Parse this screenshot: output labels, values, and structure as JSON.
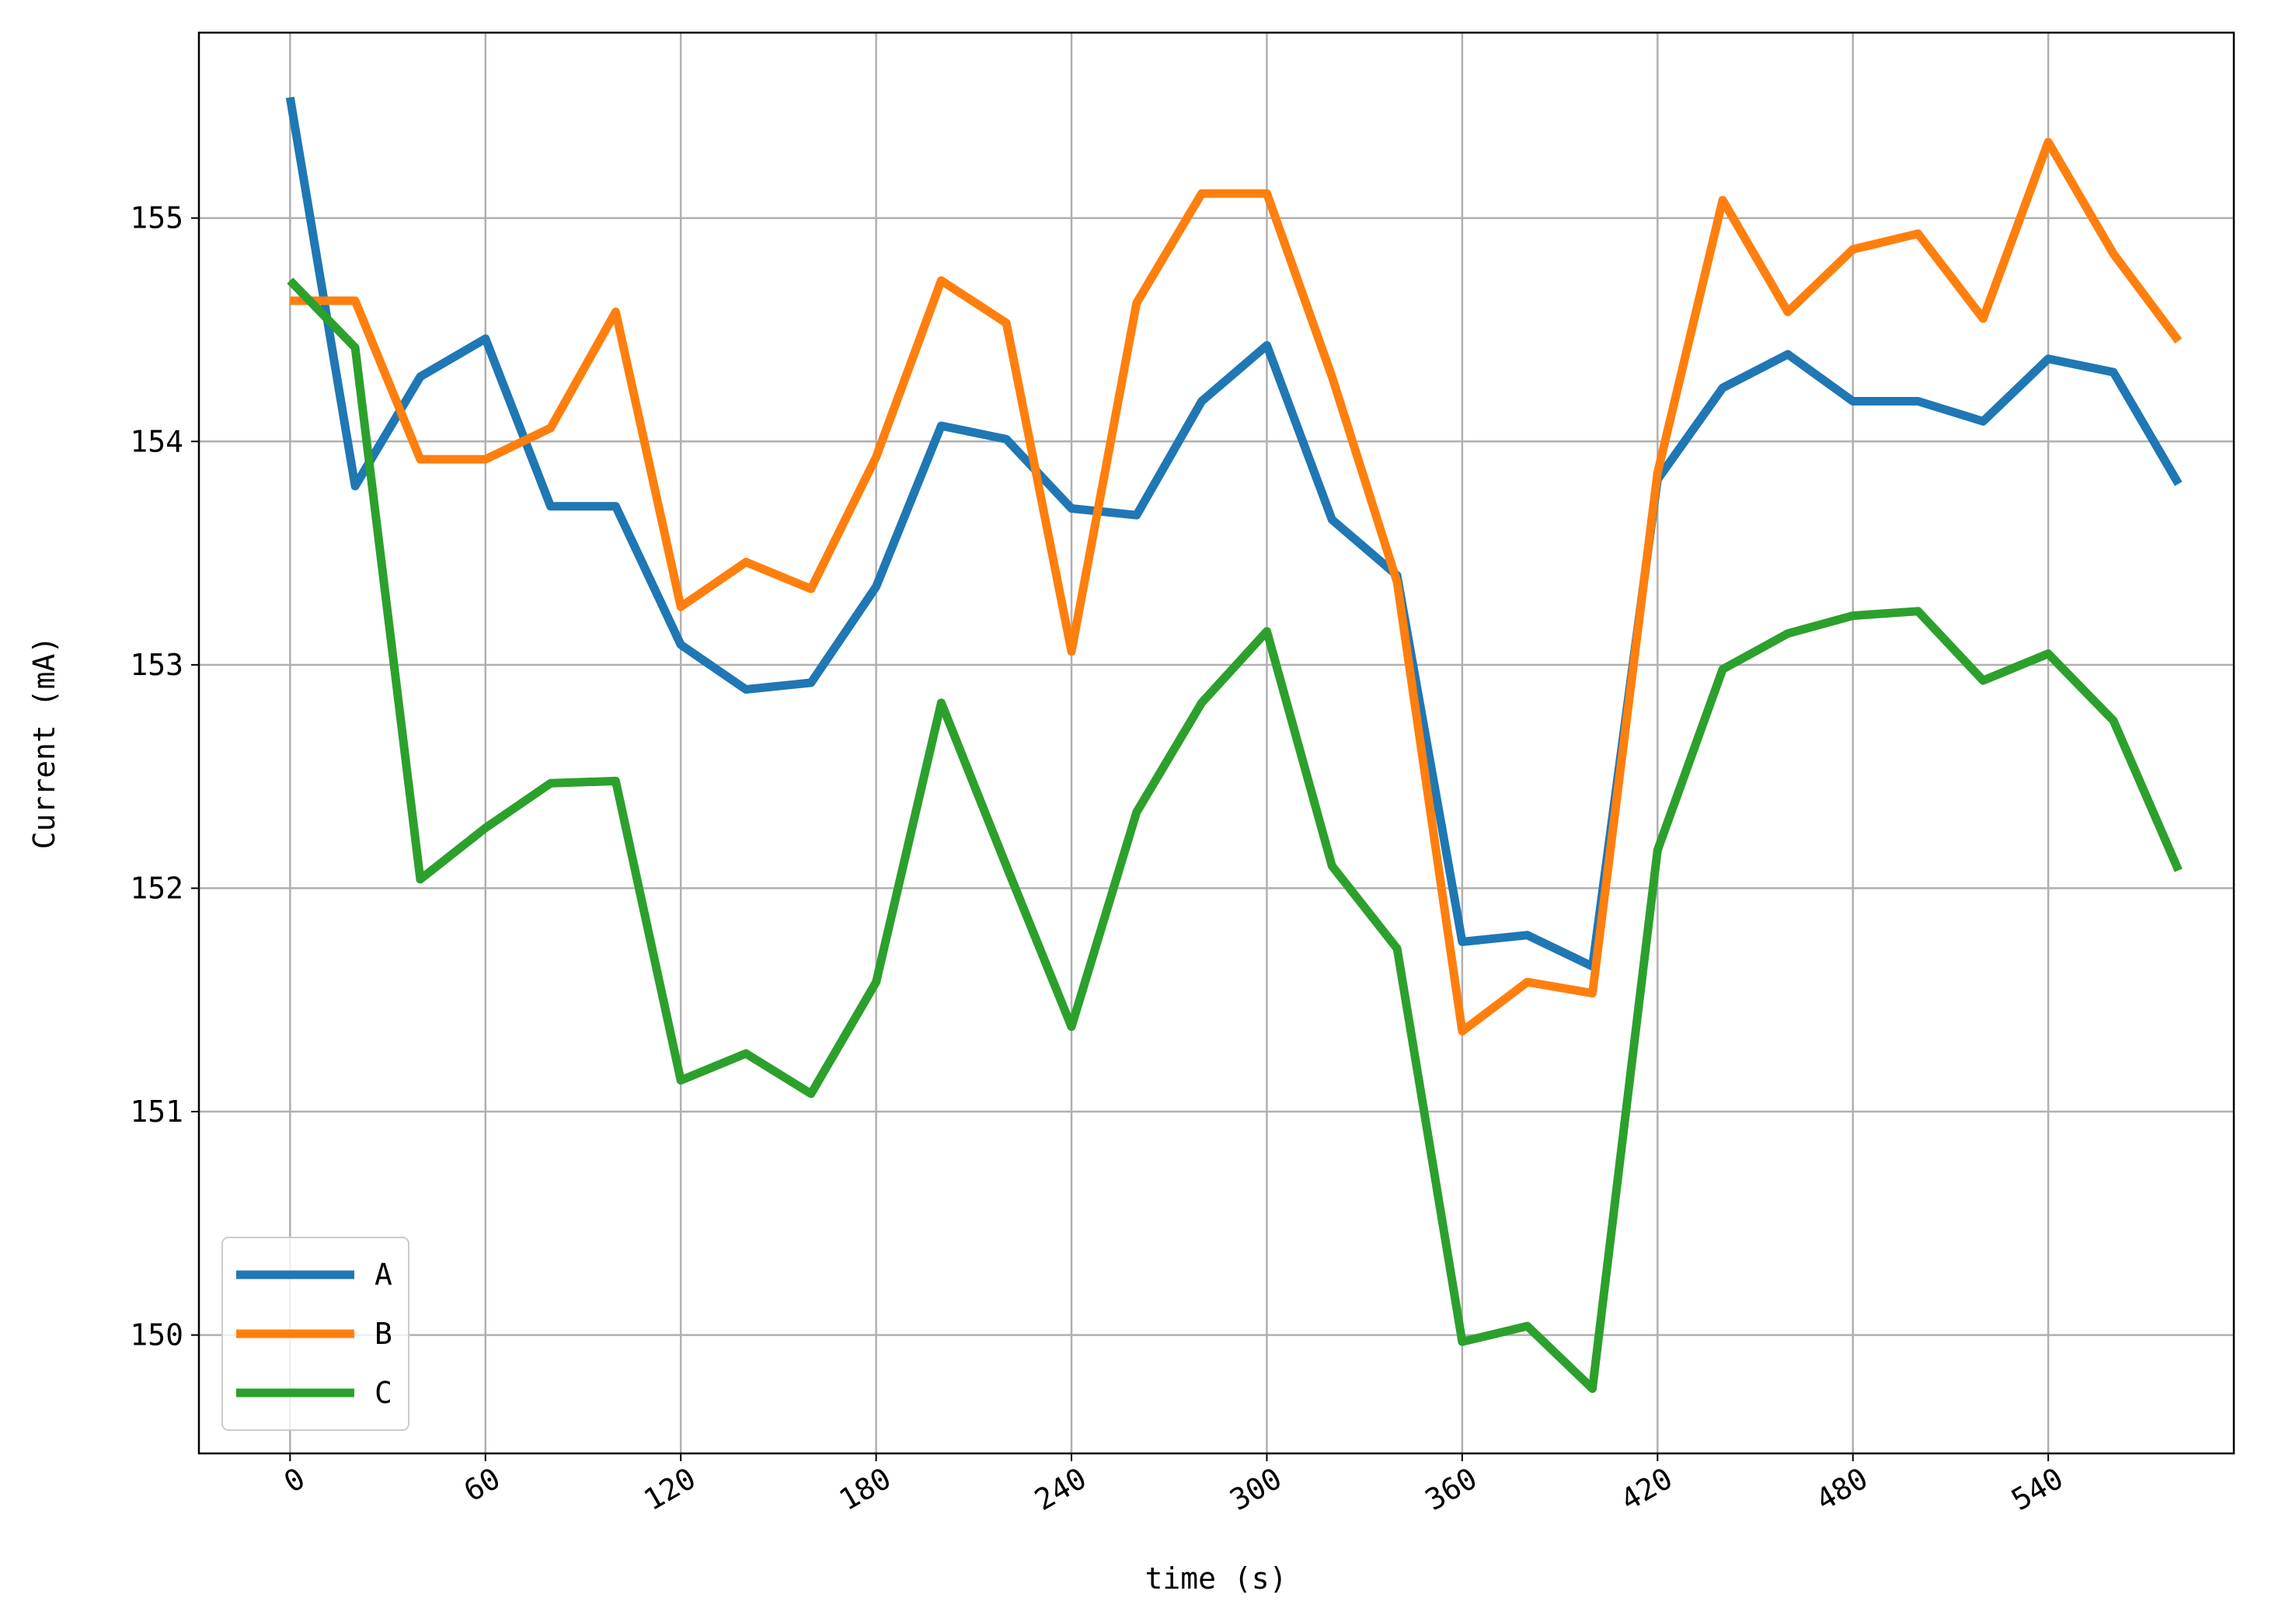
{
  "chart_data": {
    "type": "line",
    "xlabel": "time (s)",
    "ylabel": "Current (mA)",
    "x": [
      0,
      20,
      40,
      60,
      80,
      100,
      120,
      140,
      160,
      180,
      200,
      220,
      240,
      260,
      280,
      300,
      320,
      340,
      360,
      380,
      400,
      420,
      440,
      460,
      480,
      500,
      520,
      540,
      560,
      580
    ],
    "series": [
      {
        "name": "A",
        "color": "#1f77b4",
        "values": [
          155.54,
          153.8,
          154.29,
          154.46,
          153.71,
          153.71,
          153.09,
          152.89,
          152.92,
          153.35,
          154.07,
          154.01,
          153.7,
          153.67,
          154.18,
          154.43,
          153.65,
          153.4,
          151.76,
          151.79,
          151.65,
          153.83,
          154.24,
          154.39,
          154.18,
          154.18,
          154.09,
          154.37,
          154.31,
          153.81
        ]
      },
      {
        "name": "B",
        "color": "#ff7f0e",
        "values": [
          154.63,
          154.63,
          153.92,
          153.92,
          154.06,
          154.58,
          153.26,
          153.46,
          153.34,
          153.93,
          154.72,
          154.53,
          153.06,
          154.62,
          155.11,
          155.11,
          154.29,
          153.37,
          151.36,
          151.58,
          151.53,
          153.86,
          155.08,
          154.58,
          154.86,
          154.93,
          154.55,
          155.34,
          154.84,
          154.45
        ]
      },
      {
        "name": "C",
        "color": "#2ca02c",
        "values": [
          154.72,
          154.42,
          152.04,
          152.27,
          152.47,
          152.48,
          151.14,
          151.26,
          151.08,
          151.58,
          152.83,
          152.1,
          151.38,
          152.34,
          152.83,
          153.15,
          152.1,
          151.73,
          149.97,
          150.04,
          149.76,
          152.17,
          152.98,
          153.14,
          153.22,
          153.24,
          152.93,
          153.05,
          152.75,
          152.08
        ]
      }
    ],
    "xlim": [
      -28,
      597
    ],
    "xticks": [
      0,
      60,
      120,
      180,
      240,
      300,
      360,
      420,
      480,
      540
    ],
    "ylim": [
      149.47,
      155.83
    ],
    "yticks": [
      150,
      151,
      152,
      153,
      154,
      155
    ],
    "grid": true,
    "legend": "lower left"
  }
}
